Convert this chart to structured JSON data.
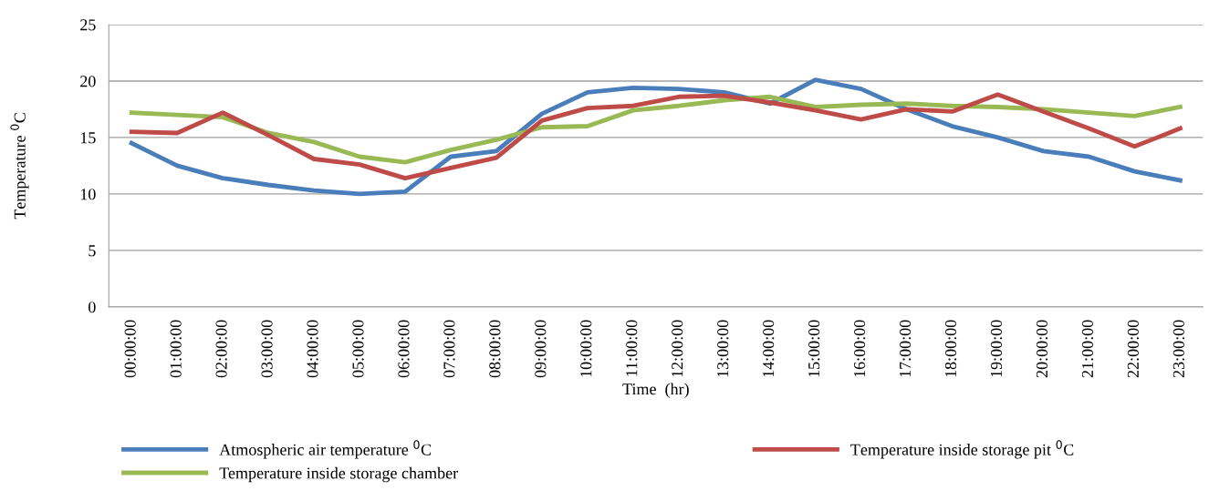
{
  "chart_data": {
    "type": "line",
    "xlabel": "Time  (hr)",
    "ylabel": "Temperature $^{0}$C",
    "categories": [
      "00:00:00",
      "01:00:00",
      "02:00:00",
      "03:00:00",
      "04:00:00",
      "05:00:00",
      "06:00:00",
      "07:00:00",
      "08:00:00",
      "09:00:00",
      "10:00:00",
      "11:00:00",
      "12:00:00",
      "13:00:00",
      "14:00:00",
      "15:00:00",
      "16:00:00",
      "17:00:00",
      "18:00:00",
      "19:00:00",
      "20:00:00",
      "21:00:00",
      "22:00:00",
      "23:00:00"
    ],
    "series": [
      {
        "name": "Atmospheric air temperature $^{0}$C",
        "color": "#4a7ebb",
        "values": [
          14.5,
          12.5,
          11.4,
          10.8,
          10.3,
          10.0,
          10.2,
          13.3,
          13.8,
          17.1,
          19.0,
          19.4,
          19.3,
          19.0,
          18.0,
          20.1,
          19.3,
          17.5,
          16.0,
          15.0,
          13.8,
          13.3,
          12.0,
          11.2
        ]
      },
      {
        "name": "Temperature inside storage chamber",
        "color": "#98b954",
        "values": [
          17.2,
          17.0,
          16.8,
          15.4,
          14.6,
          13.3,
          12.8,
          13.9,
          14.8,
          15.9,
          16.0,
          17.4,
          17.8,
          18.3,
          18.6,
          17.7,
          17.9,
          18.0,
          17.8,
          17.7,
          17.5,
          17.2,
          16.9,
          17.7
        ]
      },
      {
        "name": "Temperature inside storage pit $^{0}$C",
        "color": "#be4b48",
        "values": [
          15.5,
          15.4,
          17.2,
          15.2,
          13.1,
          12.6,
          11.4,
          12.3,
          13.2,
          16.5,
          17.6,
          17.8,
          18.6,
          18.7,
          18.1,
          17.4,
          16.6,
          17.5,
          17.3,
          18.8,
          17.3,
          15.8,
          14.2,
          15.8
        ]
      }
    ],
    "ylim": [
      0,
      25
    ],
    "yticks": [
      0,
      5,
      10,
      15,
      20,
      25
    ],
    "grid": "y",
    "legend": "bottom",
    "marker": "none",
    "line_style": "solid"
  }
}
